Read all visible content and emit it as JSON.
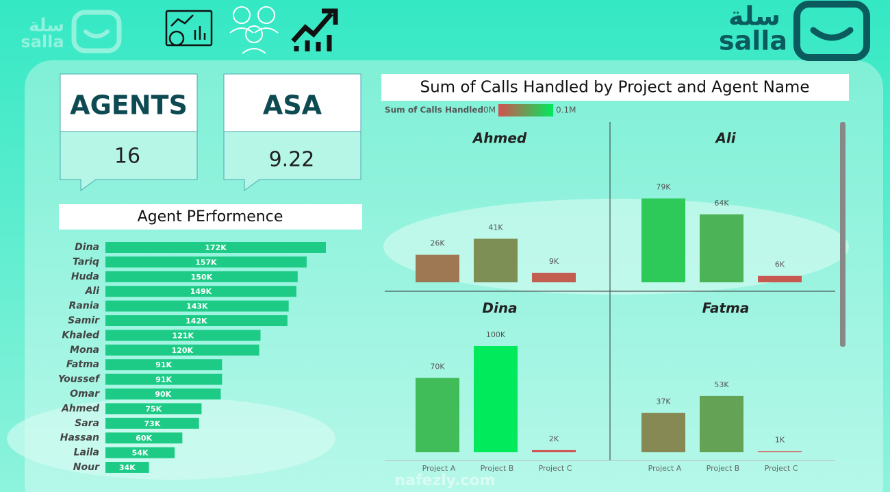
{
  "brand": {
    "arabic": "سلة",
    "latin": "salla"
  },
  "cards": [
    {
      "title": "AGENTS",
      "value": 16
    },
    {
      "title": "ASA",
      "value": 9.22
    }
  ],
  "watermark": "nafezly.com",
  "chart_data": [
    {
      "type": "hbar",
      "title": "Agent PErformence",
      "color": "#1ecb86",
      "categories": [
        "Dina",
        "Tariq",
        "Huda",
        "Ali",
        "Rania",
        "Samir",
        "Khaled",
        "Mona",
        "Fatma",
        "Youssef",
        "Omar",
        "Ahmed",
        "Sara",
        "Hassan",
        "Laila",
        "Nour"
      ],
      "values": [
        172000,
        157000,
        150000,
        149000,
        143000,
        142000,
        121000,
        120000,
        91000,
        91000,
        90000,
        75000,
        73000,
        60000,
        54000,
        34000
      ],
      "value_labels": [
        "172K",
        "157K",
        "150K",
        "149K",
        "143K",
        "142K",
        "121K",
        "120K",
        "91K",
        "91K",
        "90K",
        "75K",
        "73K",
        "60K",
        "54K",
        "34K"
      ]
    },
    {
      "type": "small-multiples",
      "title": "Sum of Calls Handled by Project and Agent Name",
      "legend": {
        "title": "Sum of Calls Handled",
        "min": {
          "value": 0,
          "label": "0M"
        },
        "max": {
          "value": 100000,
          "label": "0.1M"
        },
        "min_color": "#d4504f",
        "max_color": "#00ea5c"
      },
      "categories": [
        "Project A",
        "Project B",
        "Project C"
      ],
      "panels": [
        {
          "name": "Ahmed",
          "values": [
            26000,
            41000,
            9000
          ],
          "value_labels": [
            "26K",
            "41K",
            "9K"
          ]
        },
        {
          "name": "Ali",
          "values": [
            79000,
            64000,
            6000
          ],
          "value_labels": [
            "79K",
            "64K",
            "6K"
          ]
        },
        {
          "name": "Dina",
          "values": [
            70000,
            100000,
            2000
          ],
          "value_labels": [
            "70K",
            "100K",
            "2K"
          ]
        },
        {
          "name": "Fatma",
          "values": [
            37000,
            53000,
            1000
          ],
          "value_labels": [
            "37K",
            "53K",
            "1K"
          ]
        }
      ]
    }
  ]
}
